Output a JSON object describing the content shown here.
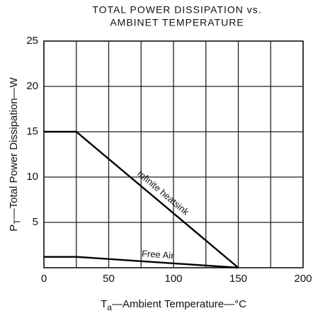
{
  "chart_data": {
    "type": "line",
    "title": [
      "TOTAL POWER DISSIPATION vs.",
      "AMBINET TEMPERATURE"
    ],
    "x_label": {
      "symbol": "T",
      "subscript": "a",
      "text": "—Ambient Temperature—°C"
    },
    "y_label": {
      "symbol": "P",
      "subscript": "T",
      "text": "—Total Power Dissipation—W"
    },
    "series": [
      {
        "name": "Infinite heatsink",
        "color": "#000000",
        "x": [
          0,
          25,
          150
        ],
        "values": [
          15,
          15,
          0
        ]
      },
      {
        "name": "Free Air",
        "color": "#000000",
        "x": [
          0,
          25,
          150
        ],
        "values": [
          1.2,
          1.2,
          0
        ]
      }
    ],
    "xlim": [
      0,
      200
    ],
    "xticks": [
      0,
      50,
      100,
      150,
      200
    ],
    "xminor_ticks": [
      25,
      75,
      125,
      175
    ],
    "ylim": [
      0,
      25
    ],
    "yticks": [
      5,
      10,
      15,
      20,
      25
    ],
    "grid": true
  }
}
